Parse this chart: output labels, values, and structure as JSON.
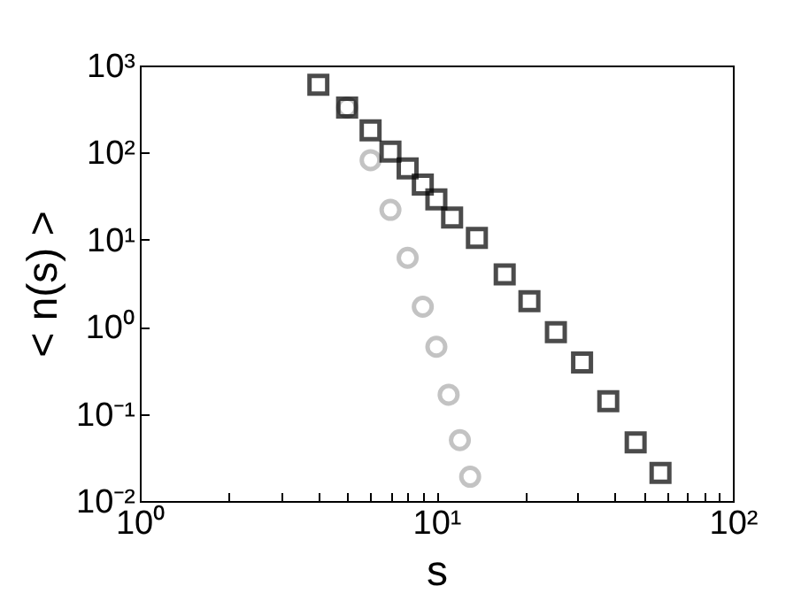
{
  "chart_data": {
    "type": "scatter",
    "xlabel": "s",
    "ylabel": "< n(s) >",
    "log": "xy",
    "grid": false,
    "xlim": [
      1,
      100
    ],
    "ylim": [
      0.01,
      1000
    ],
    "xticks": [
      {
        "value": 1,
        "label": "10⁰"
      },
      {
        "value": 2,
        "label": null
      },
      {
        "value": 3,
        "label": null
      },
      {
        "value": 4,
        "label": null
      },
      {
        "value": 5,
        "label": null
      },
      {
        "value": 6,
        "label": null
      },
      {
        "value": 7,
        "label": null
      },
      {
        "value": 8,
        "label": null
      },
      {
        "value": 9,
        "label": null
      },
      {
        "value": 10,
        "label": "10¹"
      },
      {
        "value": 20,
        "label": null
      },
      {
        "value": 30,
        "label": null
      },
      {
        "value": 40,
        "label": null
      },
      {
        "value": 50,
        "label": null
      },
      {
        "value": 60,
        "label": null
      },
      {
        "value": 70,
        "label": null
      },
      {
        "value": 80,
        "label": null
      },
      {
        "value": 90,
        "label": null
      },
      {
        "value": 100,
        "label": "10²"
      }
    ],
    "yticks": [
      {
        "value": 0.01,
        "label": "10⁻²"
      },
      {
        "value": 0.1,
        "label": "10⁻¹"
      },
      {
        "value": 1,
        "label": "10⁰"
      },
      {
        "value": 10,
        "label": "10¹"
      },
      {
        "value": 100,
        "label": "10²"
      },
      {
        "value": 1000,
        "label": "10³"
      }
    ],
    "series": [
      {
        "color": "#000000",
        "marker": "square",
        "x": [
          4,
          5,
          6,
          7,
          8,
          9,
          10,
          11.3,
          13.7,
          17,
          20.6,
          25.3,
          31,
          38,
          47,
          57
        ],
        "values": [
          600,
          330,
          180,
          103,
          66,
          43,
          29,
          18,
          10.5,
          4.0,
          1.97,
          0.87,
          0.39,
          0.14,
          0.047,
          0.021
        ]
      },
      {
        "color": "#aaaaaa",
        "marker": "circle",
        "x": [
          5,
          6,
          7,
          8,
          9,
          10,
          11,
          12,
          13
        ],
        "values": [
          330,
          82,
          22,
          6.2,
          1.7,
          0.59,
          0.166,
          0.05,
          0.019
        ]
      }
    ]
  }
}
